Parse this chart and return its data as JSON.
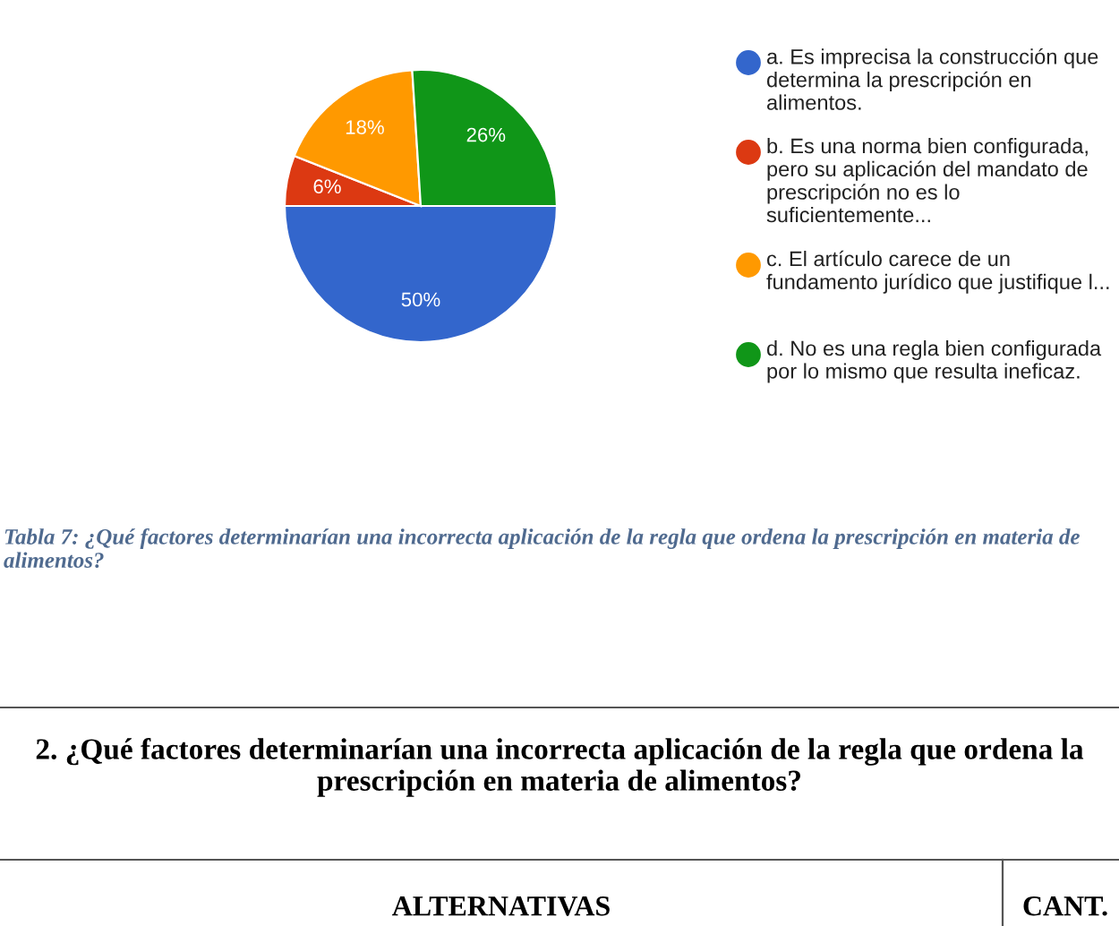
{
  "chart_data": {
    "type": "pie",
    "categories": [
      "a. Es imprecisa la construcción que determina la prescripción en alimentos.",
      "b. Es una norma bien configurada, pero su aplicación del mandato de prescripción no es lo suficientemente...",
      "c. El artículo carece de un fundamento jurídico que justifique l...",
      "d. No es una regla bien configurada por lo mismo que resulta ineficaz."
    ],
    "values": [
      50,
      6,
      18,
      26
    ],
    "colors": [
      "#3366cc",
      "#dc3912",
      "#ff9900",
      "#109618"
    ],
    "value_labels": [
      "50%",
      "6%",
      "18%",
      "26%"
    ],
    "legend": "right",
    "annotations": [
      "Tabla 7: ¿Qué factores determinarían una incorrecta aplicación de la regla que ordena la prescripción en materia de alimentos?",
      "2. ¿Qué factores determinarían una incorrecta aplicación de la regla que ordena la prescripción en materia de alimentos?",
      "ALTERNATIVAS",
      "CANT."
    ]
  }
}
